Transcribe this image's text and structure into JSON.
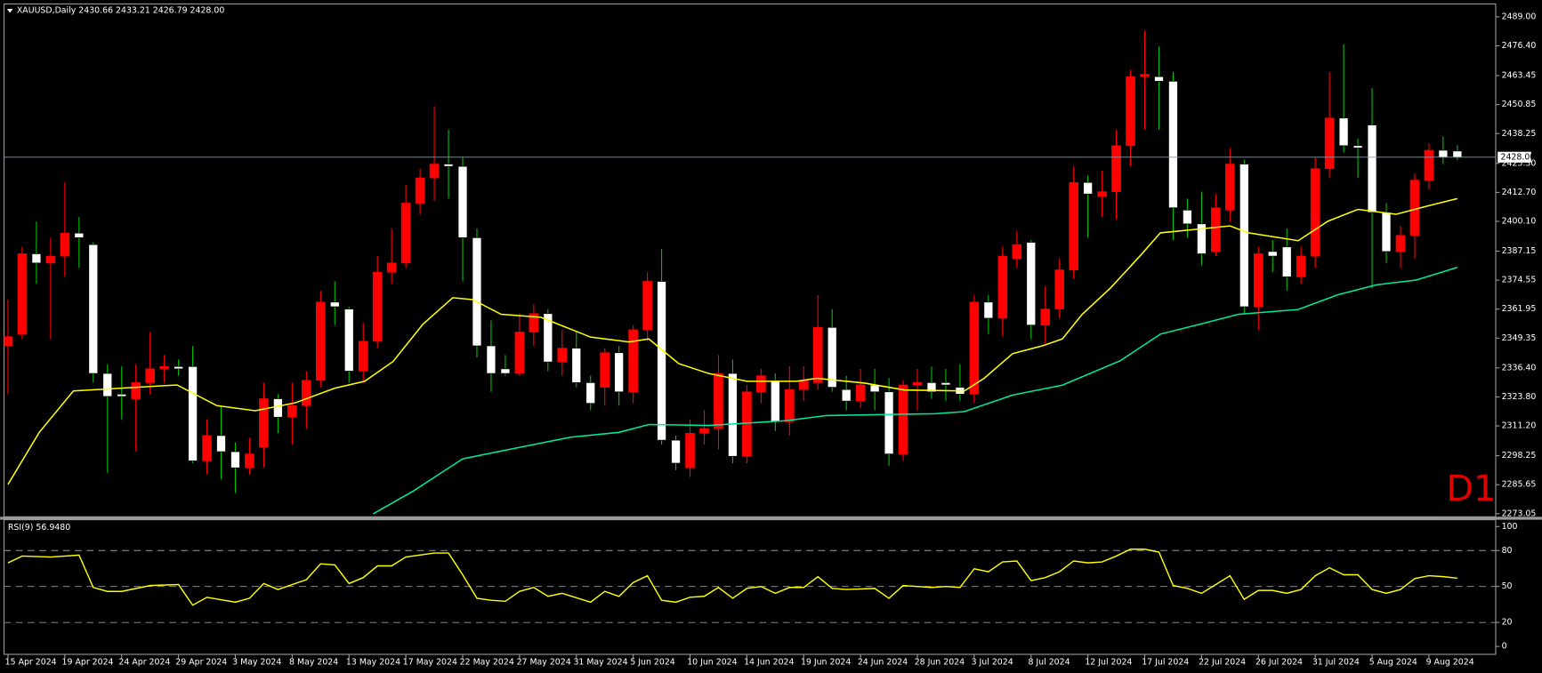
{
  "chart_data": {
    "type": "candlestick",
    "title": "XAUUSD,Daily  2430.66 2433.21 2426.79 2428.00",
    "annotation": "D1",
    "annotation_color": "#e00000",
    "categories": [
      "15 Apr 2024",
      null,
      null,
      null,
      "19 Apr 2024",
      null,
      null,
      null,
      "24 Apr 2024",
      null,
      null,
      null,
      "29 Apr 2024",
      null,
      null,
      null,
      "3 May 2024",
      null,
      null,
      null,
      "8 May 2024",
      null,
      null,
      null,
      "13 May 2024",
      null,
      null,
      null,
      "17 May 2024",
      null,
      null,
      null,
      "22 May 2024",
      null,
      null,
      null,
      "27 May 2024",
      null,
      null,
      null,
      "31 May 2024",
      null,
      null,
      null,
      "5 Jun 2024",
      null,
      null,
      null,
      "10 Jun 2024",
      null,
      null,
      null,
      "14 Jun 2024",
      null,
      null,
      null,
      "19 Jun 2024",
      null,
      null,
      null,
      "24 Jun 2024",
      null,
      null,
      null,
      "28 Jun 2024",
      null,
      null,
      null,
      "3 Jul 2024",
      null,
      null,
      null,
      "8 Jul 2024",
      null,
      null,
      null,
      "12 Jul 2024",
      null,
      null,
      null,
      "17 Jul 2024",
      null,
      null,
      null,
      "22 Jul 2024",
      null,
      null,
      null,
      "26 Jul 2024",
      null,
      null,
      null,
      "31 Jul 2024",
      null,
      null,
      null,
      "5 Aug 2024",
      null,
      null,
      null,
      "9 Aug 2024",
      null,
      null
    ],
    "open": [
      2346,
      2351,
      2386,
      2382,
      2385,
      2395,
      2390,
      2334,
      2325,
      2323,
      2330,
      2336,
      2337,
      2337,
      2296,
      2307,
      2300,
      2293,
      2302,
      2323,
      2315,
      2320,
      2331,
      2365,
      2362,
      2335,
      2348,
      2378,
      2382,
      2408,
      2419,
      2425,
      2424,
      2393,
      2346,
      2336,
      2334,
      2352,
      2360,
      2339,
      2345,
      2330,
      2328,
      2343,
      2326,
      2353,
      2374,
      2305,
      2293,
      2308,
      2310,
      2334,
      2298,
      2326,
      2331,
      2313,
      2327,
      2330,
      2354,
      2327,
      2322,
      2329,
      2326,
      2299,
      2329,
      2330,
      2330,
      2328,
      2325,
      2365,
      2358,
      2384,
      2391,
      2355,
      2362,
      2379,
      2417,
      2411,
      2413,
      2433,
      2463,
      2463,
      2461,
      2405,
      2399,
      2387,
      2405,
      2425,
      2363,
      2387,
      2389,
      2376,
      2385,
      2423,
      2445,
      2433,
      2442,
      2404,
      2387,
      2394,
      2418,
      2431,
      2430.66
    ],
    "high": [
      2366,
      2389,
      2400,
      2393,
      2417,
      2402,
      2391,
      2338,
      2337,
      2338,
      2352,
      2342,
      2340,
      2346,
      2314,
      2320,
      2304,
      2306,
      2330,
      2325,
      2330,
      2335,
      2370,
      2374,
      2363,
      2356,
      2385,
      2397,
      2416,
      2423,
      2450,
      2440,
      2428,
      2397,
      2357,
      2342,
      2360,
      2364,
      2362,
      2353,
      2352,
      2333,
      2345,
      2346,
      2355,
      2378,
      2388,
      2307,
      2314,
      2318,
      2342,
      2340,
      2329,
      2336,
      2334,
      2337,
      2337,
      2368,
      2362,
      2333,
      2336,
      2336,
      2332,
      2331,
      2336,
      2337,
      2336,
      2338,
      2368,
      2368,
      2389,
      2396,
      2392,
      2372,
      2384,
      2424,
      2420,
      2422,
      2440,
      2466,
      2483,
      2476,
      2465,
      2410,
      2413,
      2412,
      2432,
      2427,
      2389,
      2392,
      2397,
      2389,
      2428,
      2465,
      2477,
      2436,
      2458,
      2408,
      2398,
      2421,
      2434,
      2437,
      2433.21
    ],
    "low": [
      2325,
      2349,
      2373,
      2349,
      2376,
      2380,
      2330,
      2291,
      2314,
      2300,
      2325,
      2330,
      2333,
      2295,
      2290,
      2288,
      2282,
      2290,
      2293,
      2308,
      2303,
      2310,
      2328,
      2355,
      2330,
      2330,
      2345,
      2373,
      2380,
      2403,
      2409,
      2410,
      2374,
      2341,
      2326,
      2333,
      2333,
      2346,
      2335,
      2333,
      2328,
      2318,
      2320,
      2320,
      2321,
      2348,
      2303,
      2292,
      2289,
      2303,
      2301,
      2295,
      2295,
      2321,
      2309,
      2307,
      2322,
      2327,
      2326,
      2318,
      2319,
      2318,
      2294,
      2296,
      2318,
      2323,
      2322,
      2322,
      2321,
      2351,
      2350,
      2380,
      2349,
      2347,
      2358,
      2375,
      2393,
      2402,
      2401,
      2424,
      2440,
      2440,
      2392,
      2393,
      2381,
      2385,
      2400,
      2360,
      2353,
      2378,
      2370,
      2373,
      2380,
      2419,
      2430,
      2419,
      2371,
      2382,
      2380,
      2384,
      2414,
      2425,
      2426.79
    ],
    "close": [
      2350,
      2386,
      2382,
      2385,
      2395,
      2393,
      2334,
      2324,
      2324,
      2330,
      2336,
      2337,
      2336,
      2296,
      2307,
      2300,
      2293,
      2299,
      2323,
      2315,
      2320,
      2331,
      2365,
      2363,
      2335,
      2348,
      2378,
      2382,
      2408,
      2419,
      2425,
      2424,
      2393,
      2346,
      2334,
      2334,
      2352,
      2360,
      2339,
      2345,
      2330,
      2321,
      2343,
      2326,
      2353,
      2374,
      2305,
      2295,
      2308,
      2310,
      2334,
      2298,
      2326,
      2333,
      2313,
      2327,
      2331,
      2354,
      2328,
      2322,
      2329,
      2326,
      2299,
      2329,
      2330,
      2326,
      2329,
      2325,
      2365,
      2358,
      2385,
      2390,
      2355,
      2362,
      2379,
      2417,
      2412,
      2413,
      2433,
      2463,
      2464,
      2461,
      2406,
      2399,
      2386,
      2406,
      2425,
      2363,
      2386,
      2385,
      2376,
      2385,
      2423,
      2445,
      2433,
      2432,
      2404,
      2387,
      2394,
      2418,
      2431,
      2428,
      2428
    ],
    "up_color": "#ff0000",
    "down_color": "#ffffff",
    "down_wick_color": "#00c000",
    "xlim": [
      -0.28,
      104.7
    ],
    "ylim": [
      2271.7,
      2494.6
    ],
    "yticks": [
      {
        "value": 2489,
        "label": "2489.00"
      },
      {
        "value": 2476.4,
        "label": "2476.40"
      },
      {
        "value": 2463.45,
        "label": "2463.45"
      },
      {
        "value": 2450.85,
        "label": "2450.85"
      },
      {
        "value": 2438.25,
        "label": "2438.25"
      },
      {
        "value": 2425.3,
        "label": "2425.30"
      },
      {
        "value": 2412.7,
        "label": "2412.70"
      },
      {
        "value": 2400.1,
        "label": "2400.10"
      },
      {
        "value": 2387.15,
        "label": "2387.15"
      },
      {
        "value": 2374.55,
        "label": "2374.55"
      },
      {
        "value": 2361.95,
        "label": "2361.95"
      },
      {
        "value": 2349.35,
        "label": "2349.35"
      },
      {
        "value": 2336.4,
        "label": "2336.40"
      },
      {
        "value": 2323.8,
        "label": "2323.80"
      },
      {
        "value": 2311.2,
        "label": "2311.20"
      },
      {
        "value": 2298.25,
        "label": "2298.25"
      },
      {
        "value": 2285.65,
        "label": "2285.65"
      },
      {
        "value": 2273.05,
        "label": "2273.05"
      }
    ],
    "current_price": {
      "value": 2428,
      "label": "2428.00"
    },
    "ma_lines": [
      {
        "color": "#ffff00",
        "x": [
          0,
          2.2,
          4.6,
          11.9,
          14.7,
          17.4,
          20.2,
          23,
          25.1,
          27.1,
          29.2,
          31.3,
          32.7,
          34.7,
          37.5,
          41,
          43.7,
          45.1,
          47.2,
          49.3,
          52,
          55.5,
          56.9,
          60.3,
          63.1,
          67.3,
          68.7,
          70.7,
          72.8,
          74.2,
          75.6,
          77.6,
          79.7,
          81.1,
          83.9,
          86,
          87.3,
          90.8,
          92.9,
          95,
          97.7,
          99.8,
          102
        ],
        "values": [
          2285.8,
          2308.4,
          2326.4,
          2329,
          2320,
          2317.8,
          2321.2,
          2327.6,
          2330.6,
          2339.2,
          2355.4,
          2366.9,
          2366.1,
          2359.7,
          2358.4,
          2349.8,
          2347.7,
          2349,
          2338.3,
          2334,
          2330.6,
          2330.6,
          2331.9,
          2329.8,
          2326.8,
          2326.4,
          2331.9,
          2342.6,
          2346,
          2349,
          2359.7,
          2371.2,
          2385.3,
          2395.1,
          2396.8,
          2398.1,
          2395.1,
          2391.7,
          2400.2,
          2405.3,
          2403.2,
          2406.6,
          2410
        ]
      },
      {
        "color": "#00e8a0",
        "x": [
          25.7,
          28.5,
          32,
          36.1,
          39.6,
          43,
          45.1,
          49.3,
          54.8,
          57.6,
          65.2,
          67.3,
          70.7,
          74.2,
          78.3,
          81.1,
          83.9,
          86.6,
          90.8,
          93.6,
          96.3,
          99.1,
          102
        ],
        "values": [
          2273,
          2282.8,
          2296.9,
          2302,
          2306.3,
          2308.4,
          2311.8,
          2311.4,
          2313.5,
          2315.7,
          2316.5,
          2317.4,
          2324.6,
          2328.9,
          2339.6,
          2351.1,
          2355.4,
          2359.7,
          2361.8,
          2368.2,
          2372.5,
          2374.6,
          2380.1
        ]
      }
    ],
    "indicator": {
      "type": "line",
      "title": "RSI(9) 56.9480",
      "color": "#ffff00",
      "ylim": [
        -6.6,
        105.7
      ],
      "yticks": [
        100,
        80,
        50,
        20,
        0
      ],
      "levels": [
        80,
        50,
        20
      ],
      "x": [
        0,
        1,
        3,
        5,
        6,
        7,
        8,
        10,
        12,
        13,
        14,
        16,
        17,
        18,
        19,
        21,
        22,
        23,
        24,
        25,
        26,
        27,
        28,
        30,
        31,
        32,
        33,
        34,
        35,
        36,
        37,
        38,
        39,
        41,
        42,
        43,
        44,
        45,
        46,
        47,
        48,
        49,
        50,
        51,
        52,
        53,
        54,
        55,
        56,
        57,
        58,
        59,
        61,
        62,
        63,
        65,
        66,
        67,
        68,
        69,
        70,
        71,
        72,
        73,
        74,
        75,
        76,
        77,
        78,
        79,
        80,
        81,
        82,
        83,
        84,
        85,
        86,
        87,
        88,
        89,
        90,
        91,
        92,
        93,
        94,
        95,
        96,
        97,
        98,
        99,
        100,
        101,
        102
      ],
      "values": [
        69.7,
        75.4,
        74.6,
        76.2,
        49.2,
        45.9,
        45.9,
        50.8,
        51.6,
        34.4,
        41,
        36.9,
        40.2,
        52.5,
        47.5,
        55.7,
        68.9,
        68,
        52.5,
        57.4,
        67.2,
        67.2,
        74.6,
        77.9,
        77.9,
        59.8,
        40.2,
        38.5,
        37.7,
        45.9,
        49.2,
        41.8,
        44.3,
        36.9,
        45.9,
        41.8,
        53.3,
        59,
        38.5,
        36.9,
        41,
        41.8,
        49.2,
        40.2,
        48.4,
        50,
        44.3,
        49.2,
        49.2,
        58.2,
        48.4,
        47.5,
        48.4,
        40.2,
        50.8,
        49.2,
        50,
        49.2,
        64.8,
        62.3,
        70.5,
        71.3,
        54.9,
        57.4,
        62.3,
        71.3,
        69.7,
        70.5,
        75.4,
        81.1,
        81.1,
        78.7,
        50.8,
        48.4,
        44.3,
        51.6,
        59,
        39.3,
        46.7,
        46.7,
        44.3,
        47.5,
        59,
        65.6,
        59.8,
        59.8,
        47.5,
        44.3,
        47.5,
        56.6,
        59,
        58.2,
        56.948
      ]
    }
  }
}
